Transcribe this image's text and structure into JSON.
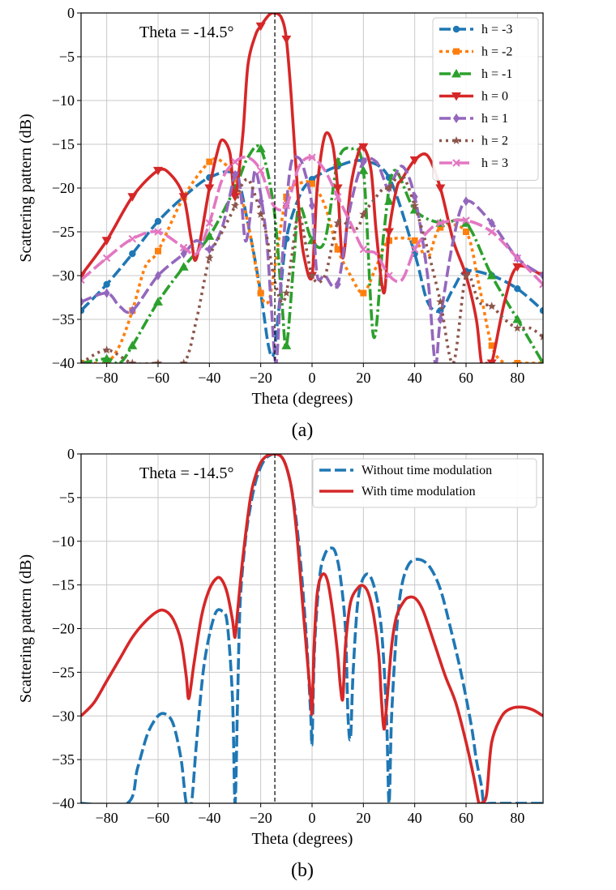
{
  "chart_data": [
    {
      "type": "line",
      "caption": "(a)",
      "xlabel": "Theta (degrees)",
      "ylabel": "Scattering pattern (dB)",
      "xlim": [
        -90,
        90
      ],
      "ylim": [
        -40,
        0
      ],
      "xticks": [
        -80,
        -60,
        -40,
        -20,
        0,
        20,
        40,
        60,
        80
      ],
      "yticks": [
        0,
        -5,
        -10,
        -15,
        -20,
        -25,
        -30,
        -35,
        -40
      ],
      "grid": true,
      "legend_position": "top-right",
      "annotation": "Theta = -14.5°",
      "vline_x": -14.5,
      "series": [
        {
          "name": "h = -3",
          "color": "#1f77b4",
          "dash": "14,5",
          "marker": "circle",
          "x": [
            -90,
            -80,
            -70,
            -60,
            -50,
            -40,
            -30,
            -25,
            -20,
            -17,
            -15,
            -13,
            -10,
            -5,
            0,
            10,
            20,
            30,
            40,
            45,
            50,
            55,
            60,
            70,
            80,
            90
          ],
          "y": [
            -34,
            -31,
            -27.5,
            -23.8,
            -21,
            -18.8,
            -18.5,
            -24,
            -32,
            -38,
            -39,
            -34,
            -25.8,
            -21,
            -19,
            -17.5,
            -16.9,
            -18.8,
            -27.5,
            -33,
            -34,
            -31.5,
            -29.5,
            -30,
            -31.5,
            -34
          ]
        },
        {
          "name": "h = -2",
          "color": "#ff7f0e",
          "dash": "4,4",
          "marker": "square",
          "x": [
            -90,
            -85,
            -80,
            -75,
            -70,
            -65,
            -60,
            -50,
            -40,
            -35,
            -30,
            -25,
            -20,
            -17,
            -15,
            -10,
            -5,
            0,
            5,
            10,
            15,
            20,
            25,
            30,
            40,
            45,
            50,
            60,
            65,
            70,
            75,
            80,
            90
          ],
          "y": [
            -40,
            -40,
            -40,
            -38,
            -34,
            -29,
            -27.2,
            -21,
            -17,
            -17,
            -19,
            -24,
            -32,
            -33,
            -30,
            -21,
            -19.5,
            -19.5,
            -22,
            -27,
            -30,
            -32,
            -29,
            -26,
            -26,
            -28,
            -24.5,
            -25,
            -31,
            -38,
            -40,
            -40,
            -40
          ]
        },
        {
          "name": "h = -1",
          "color": "#2ca02c",
          "dash": "14,4,3,4",
          "marker": "triangle",
          "x": [
            -90,
            -80,
            -75,
            -70,
            -60,
            -50,
            -40,
            -30,
            -25,
            -20,
            -15,
            -12,
            -10,
            -7,
            -5,
            0,
            5,
            10,
            15,
            20,
            24,
            28,
            32,
            40,
            50,
            60,
            70,
            80,
            85,
            90
          ],
          "y": [
            -40,
            -39.5,
            -40,
            -38,
            -33,
            -29,
            -25.5,
            -20,
            -16.5,
            -15.5,
            -22,
            -32,
            -38,
            -28,
            -22,
            -26,
            -26,
            -17,
            -15.5,
            -18,
            -37,
            -25,
            -18,
            -22.5,
            -24,
            -24,
            -30,
            -35,
            -37.5,
            -40
          ]
        },
        {
          "name": "h = 0",
          "color": "#d62728",
          "dash": "",
          "marker": "triangle-down",
          "x": [
            -90,
            -80,
            -70,
            -60,
            -55,
            -50,
            -47,
            -45,
            -40,
            -37,
            -35,
            -32,
            -30,
            -27,
            -25,
            -22,
            -20,
            -17,
            -15,
            -12,
            -10,
            -8,
            -5,
            -3,
            0,
            2,
            5,
            8,
            10,
            12,
            15,
            18,
            20,
            23,
            25,
            28,
            30,
            33,
            35,
            40,
            45,
            50,
            55,
            60,
            64,
            66,
            68,
            70,
            75,
            80,
            90
          ],
          "y": [
            -30,
            -26,
            -21,
            -18,
            -18.5,
            -21,
            -26,
            -28,
            -20,
            -16,
            -14.5,
            -16,
            -21,
            -14,
            -6,
            -2.5,
            -1.5,
            -0.3,
            0,
            -0.5,
            -3,
            -10,
            -23,
            -28,
            -30,
            -20,
            -14,
            -15,
            -20,
            -28,
            -20,
            -16,
            -15.3,
            -18,
            -25,
            -32,
            -25,
            -20,
            -19,
            -16.8,
            -16.3,
            -20,
            -26,
            -30,
            -35,
            -40,
            -40,
            -40,
            -33,
            -29,
            -30
          ]
        },
        {
          "name": "h = 1",
          "color": "#9467bd",
          "dash": "14,5",
          "marker": "diamond",
          "x": [
            -90,
            -80,
            -75,
            -70,
            -60,
            -50,
            -45,
            -40,
            -35,
            -30,
            -28,
            -26,
            -24,
            -22,
            -18,
            -16,
            -14,
            -12,
            -10,
            -8,
            -5,
            -3,
            0,
            2,
            5,
            10,
            15,
            20,
            25,
            28,
            30,
            35,
            40,
            45,
            48,
            50,
            55,
            60,
            70,
            80,
            90
          ],
          "y": [
            -33,
            -32,
            -33.5,
            -34,
            -30,
            -27.5,
            -26,
            -27,
            -24.5,
            -18.5,
            -20,
            -26,
            -23,
            -18,
            -25,
            -33,
            -40,
            -30,
            -22,
            -17,
            -16.6,
            -18,
            -22,
            -30,
            -30,
            -31,
            -22,
            -17,
            -17,
            -19,
            -20,
            -17.5,
            -21,
            -30,
            -40,
            -35,
            -26,
            -21.5,
            -24,
            -28,
            -30
          ]
        },
        {
          "name": "h = 2",
          "color": "#8c564b",
          "dash": "3,5",
          "marker": "star",
          "x": [
            -90,
            -80,
            -70,
            -60,
            -50,
            -45,
            -40,
            -35,
            -30,
            -28,
            -25,
            -22,
            -18,
            -15,
            -12,
            -10,
            -8,
            -5,
            0,
            5,
            10,
            15,
            18,
            20,
            25,
            28,
            30,
            35,
            40,
            45,
            50,
            55,
            60,
            65,
            70,
            75,
            80,
            85,
            90
          ],
          "y": [
            -40,
            -38.5,
            -40,
            -40,
            -40,
            -35,
            -28,
            -25,
            -22,
            -20,
            -19,
            -21,
            -25,
            -30,
            -33,
            -32,
            -28,
            -23,
            -30,
            -30,
            -24,
            -24.5,
            -24.5,
            -23,
            -21,
            -20,
            -20,
            -18.5,
            -22,
            -27,
            -33,
            -40,
            -30,
            -33,
            -33.5,
            -35,
            -36,
            -36,
            -37
          ]
        },
        {
          "name": "h = 3",
          "color": "#e377c2",
          "dash": "16,5",
          "marker": "x",
          "x": [
            -90,
            -80,
            -70,
            -60,
            -50,
            -45,
            -40,
            -35,
            -30,
            -25,
            -20,
            -15,
            -10,
            -5,
            0,
            5,
            10,
            15,
            20,
            25,
            30,
            35,
            40,
            45,
            50,
            60,
            70,
            80,
            90
          ],
          "y": [
            -30.5,
            -28,
            -25.8,
            -25,
            -26.8,
            -27.5,
            -24,
            -19,
            -17,
            -16.5,
            -18,
            -22,
            -22,
            -17.5,
            -16.5,
            -18,
            -21,
            -24,
            -27,
            -27.5,
            -30,
            -30.5,
            -27,
            -25,
            -24,
            -23.7,
            -25,
            -28,
            -31
          ]
        }
      ]
    },
    {
      "type": "line",
      "caption": "(b)",
      "xlabel": "Theta (degrees)",
      "ylabel": "Scattering pattern (dB)",
      "xlim": [
        -90,
        90
      ],
      "ylim": [
        -40,
        0
      ],
      "xticks": [
        -80,
        -60,
        -40,
        -20,
        0,
        20,
        40,
        60,
        80
      ],
      "yticks": [
        0,
        -5,
        -10,
        -15,
        -20,
        -25,
        -30,
        -35,
        -40
      ],
      "grid": true,
      "legend_position": "top-right",
      "annotation": "Theta = -14.5°",
      "vline_x": -14.5,
      "series": [
        {
          "name": "Without time modulation",
          "color": "#1f77b4",
          "dash": "14,5",
          "x": [
            -90,
            -72,
            -68,
            -64,
            -60,
            -57,
            -54,
            -51,
            -49,
            -47,
            -45,
            -42,
            -38,
            -35,
            -33,
            -31,
            -30,
            -29,
            -28,
            -26,
            -24,
            -22,
            -20,
            -18,
            -16,
            -14.5,
            -12,
            -10,
            -8,
            -6,
            -4,
            -2,
            -0.5,
            0,
            1,
            3,
            5,
            7,
            9,
            11,
            13,
            14,
            15,
            16,
            18,
            21,
            24,
            27,
            29,
            30,
            31,
            33,
            35,
            38,
            42,
            46,
            50,
            54,
            58,
            62,
            64,
            66,
            67,
            70,
            90
          ],
          "y": [
            -40,
            -40,
            -36,
            -32,
            -30,
            -29.8,
            -31,
            -35,
            -40,
            -40,
            -33,
            -24,
            -18.5,
            -18,
            -19.5,
            -28,
            -40,
            -28,
            -17,
            -10,
            -6,
            -3.2,
            -1.5,
            -0.5,
            -0.1,
            0,
            -0.3,
            -1.5,
            -4,
            -8,
            -14,
            -22,
            -30,
            -33,
            -22,
            -14,
            -11.5,
            -10.8,
            -11.2,
            -14,
            -20,
            -30,
            -32.5,
            -25,
            -16.5,
            -13.8,
            -15,
            -20,
            -30,
            -40,
            -30,
            -20,
            -15,
            -12.5,
            -12.1,
            -13,
            -15.5,
            -20,
            -25,
            -31,
            -35,
            -38,
            -40,
            -40,
            -40
          ]
        },
        {
          "name": "With time modulation",
          "color": "#d62728",
          "dash": "",
          "x": [
            -90,
            -85,
            -80,
            -75,
            -70,
            -65,
            -60,
            -57,
            -54,
            -51,
            -49,
            -48,
            -46,
            -43,
            -40,
            -37,
            -35,
            -33,
            -31,
            -30,
            -29,
            -27,
            -24,
            -22,
            -20,
            -18,
            -16,
            -14.5,
            -12,
            -10,
            -8,
            -6,
            -4,
            -2,
            -0.5,
            0,
            0.8,
            2,
            4,
            6,
            8,
            10,
            11,
            12,
            13,
            15,
            18,
            20,
            22,
            24,
            26,
            27,
            28,
            29,
            31,
            33,
            36,
            38,
            40,
            42,
            44,
            48,
            52,
            56,
            60,
            63,
            65,
            66,
            68,
            70,
            74,
            78,
            82,
            86,
            90
          ],
          "y": [
            -30,
            -28.5,
            -26,
            -23.5,
            -21,
            -19.2,
            -18,
            -18,
            -19,
            -21.5,
            -25.5,
            -28,
            -24,
            -18.5,
            -15.5,
            -14.2,
            -14.5,
            -16,
            -19,
            -21,
            -18,
            -12,
            -5,
            -2.5,
            -1,
            -0.3,
            -0.05,
            0,
            -0.3,
            -1.5,
            -4,
            -9,
            -16,
            -23,
            -28,
            -29.5,
            -22,
            -16,
            -13.8,
            -14.5,
            -18,
            -23,
            -26.5,
            -28,
            -22,
            -17,
            -15.3,
            -15.1,
            -16,
            -18.5,
            -23,
            -28,
            -31.5,
            -29,
            -22,
            -18.5,
            -16.8,
            -16.4,
            -16.5,
            -17.2,
            -18.5,
            -22,
            -25.5,
            -28.5,
            -33,
            -37,
            -40,
            -40,
            -39,
            -33,
            -30,
            -29.1,
            -29,
            -29.3,
            -30
          ]
        }
      ]
    }
  ]
}
